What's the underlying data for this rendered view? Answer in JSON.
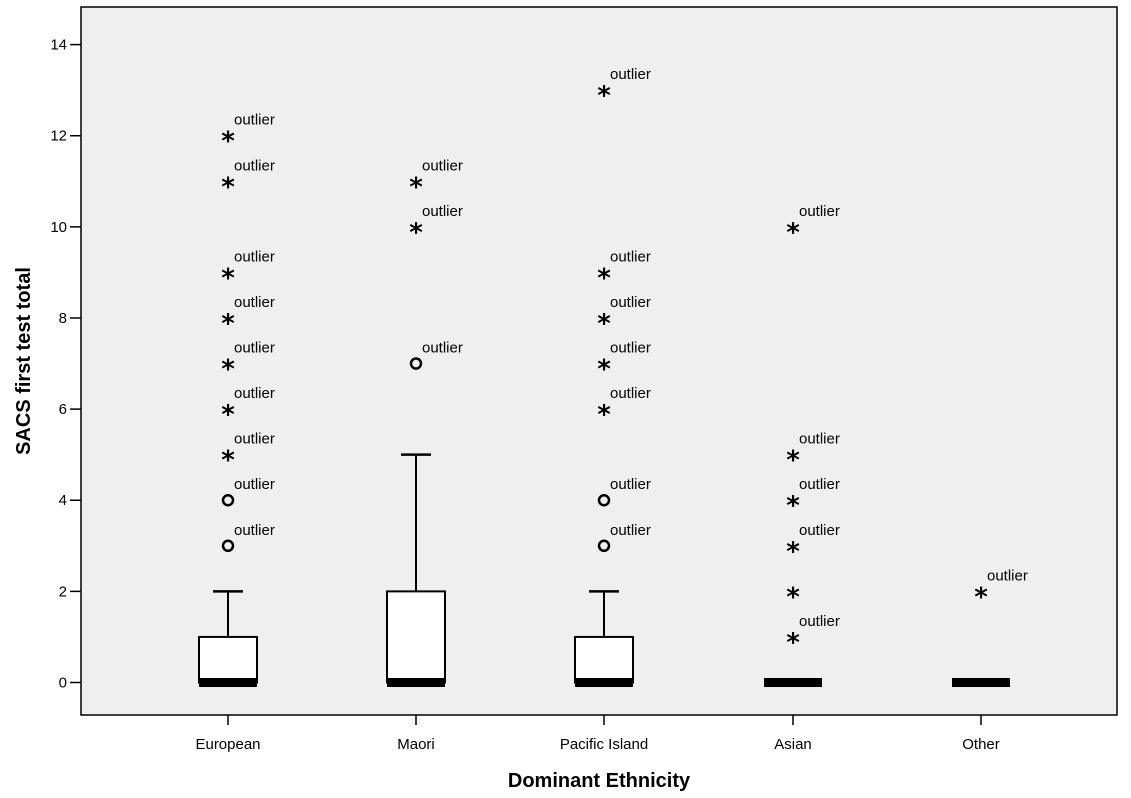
{
  "chart_data": {
    "type": "boxplot",
    "xlabel": "Dominant Ethnicity",
    "ylabel": "SACS first test total",
    "ylim": [
      -0.7,
      14.7
    ],
    "yticks": [
      "0",
      "2",
      "4",
      "6",
      "8",
      "10",
      "12",
      "14"
    ],
    "grid": false,
    "background": "#efefef",
    "categories": [
      "European",
      "Maori",
      "Pacific Island",
      "Asian",
      "Other"
    ],
    "outlier_label": "outlier",
    "boxes": [
      {
        "category": "European",
        "q1": 0,
        "median": 0,
        "q3": 1,
        "whisker_low": 0,
        "whisker_high": 2,
        "outliers": [
          {
            "value": 3,
            "marker": "circle"
          },
          {
            "value": 4,
            "marker": "circle"
          },
          {
            "value": 5,
            "marker": "star"
          },
          {
            "value": 6,
            "marker": "star"
          },
          {
            "value": 7,
            "marker": "star"
          },
          {
            "value": 8,
            "marker": "star"
          },
          {
            "value": 9,
            "marker": "star"
          },
          {
            "value": 11,
            "marker": "star"
          },
          {
            "value": 12,
            "marker": "star"
          }
        ]
      },
      {
        "category": "Maori",
        "q1": 0,
        "median": 0,
        "q3": 2,
        "whisker_low": 0,
        "whisker_high": 5,
        "outliers": [
          {
            "value": 7,
            "marker": "circle"
          },
          {
            "value": 10,
            "marker": "star"
          },
          {
            "value": 11,
            "marker": "star"
          }
        ]
      },
      {
        "category": "Pacific Island",
        "q1": 0,
        "median": 0,
        "q3": 1,
        "whisker_low": 0,
        "whisker_high": 2,
        "outliers": [
          {
            "value": 3,
            "marker": "circle"
          },
          {
            "value": 4,
            "marker": "circle"
          },
          {
            "value": 6,
            "marker": "star"
          },
          {
            "value": 7,
            "marker": "star"
          },
          {
            "value": 8,
            "marker": "star"
          },
          {
            "value": 9,
            "marker": "star"
          },
          {
            "value": 13,
            "marker": "star"
          }
        ]
      },
      {
        "category": "Asian",
        "q1": 0,
        "median": 0,
        "q3": 0,
        "whisker_low": 0,
        "whisker_high": 0,
        "outliers": [
          {
            "value": 1,
            "marker": "star"
          },
          {
            "value": 2,
            "marker": "star",
            "unlabeled": true
          },
          {
            "value": 3,
            "marker": "star"
          },
          {
            "value": 4,
            "marker": "star"
          },
          {
            "value": 5,
            "marker": "star"
          },
          {
            "value": 10,
            "marker": "star"
          }
        ]
      },
      {
        "category": "Other",
        "q1": 0,
        "median": 0,
        "q3": 0,
        "whisker_low": 0,
        "whisker_high": 0,
        "outliers": [
          {
            "value": 2,
            "marker": "star"
          }
        ]
      }
    ]
  }
}
